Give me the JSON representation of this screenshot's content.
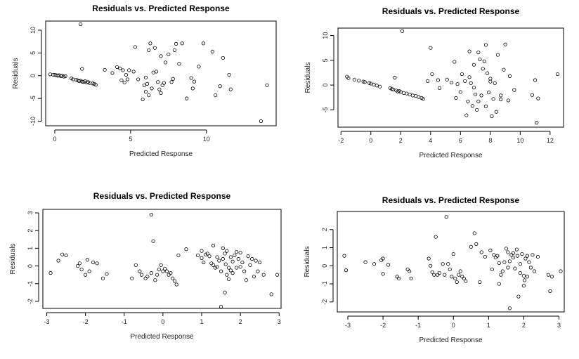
{
  "chart_data": [
    {
      "type": "scatter",
      "title": "Residuals vs. Predicted Response",
      "xlabel": "Predicted Response",
      "ylabel": "Residuals",
      "xlim": [
        -0.6,
        14.6
      ],
      "ylim": [
        -11,
        12
      ],
      "xticks": [
        "0",
        "5",
        "10"
      ],
      "xtick_values": [
        0,
        5,
        10
      ],
      "yticks": [
        "-10",
        "-5",
        "0",
        "5",
        "10"
      ],
      "ytick_values": [
        -10,
        -5,
        0,
        5,
        10
      ],
      "grid": false,
      "points": [
        [
          -0.3,
          0.3
        ],
        [
          -0.1,
          0.2
        ],
        [
          0.0,
          0.2
        ],
        [
          0.1,
          0.1
        ],
        [
          0.2,
          0.0
        ],
        [
          0.3,
          0.1
        ],
        [
          0.4,
          -0.1
        ],
        [
          0.5,
          0.0
        ],
        [
          0.6,
          -0.2
        ],
        [
          0.7,
          -0.1
        ],
        [
          1.1,
          -0.6
        ],
        [
          1.2,
          -0.8
        ],
        [
          1.4,
          -0.9
        ],
        [
          1.5,
          -1.0
        ],
        [
          1.6,
          -1.2
        ],
        [
          1.7,
          -1.1
        ],
        [
          1.8,
          -1.3
        ],
        [
          1.9,
          -1.4
        ],
        [
          2.0,
          -1.2
        ],
        [
          2.1,
          -1.5
        ],
        [
          2.2,
          -1.4
        ],
        [
          2.3,
          -1.6
        ],
        [
          2.5,
          -1.7
        ],
        [
          2.6,
          -1.8
        ],
        [
          2.7,
          -2.0
        ],
        [
          1.7,
          11.3
        ],
        [
          1.8,
          1.5
        ],
        [
          3.3,
          1.3
        ],
        [
          3.8,
          0.6
        ],
        [
          4.1,
          1.9
        ],
        [
          4.3,
          1.6
        ],
        [
          4.4,
          -1.0
        ],
        [
          4.5,
          1.2
        ],
        [
          4.6,
          -1.5
        ],
        [
          4.7,
          0.2
        ],
        [
          4.8,
          -0.8
        ],
        [
          4.9,
          1.2
        ],
        [
          5.2,
          0.9
        ],
        [
          5.3,
          6.3
        ],
        [
          5.5,
          -0.8
        ],
        [
          5.8,
          -5.2
        ],
        [
          5.9,
          -2.1
        ],
        [
          6.0,
          -3.5
        ],
        [
          6.1,
          -1.8
        ],
        [
          6.2,
          -4.3
        ],
        [
          6.3,
          7.1
        ],
        [
          6.4,
          -2.8
        ],
        [
          6.5,
          0.7
        ],
        [
          6.6,
          6.1
        ],
        [
          6.7,
          0.9
        ],
        [
          6.8,
          -1.4
        ],
        [
          6.9,
          -3.0
        ],
        [
          7.0,
          -3.8
        ],
        [
          7.1,
          -2.1
        ],
        [
          7.2,
          -1.6
        ],
        [
          7.3,
          2.9
        ],
        [
          7.5,
          4.7
        ],
        [
          7.7,
          -1.4
        ],
        [
          7.8,
          -0.7
        ],
        [
          7.9,
          5.6
        ],
        [
          8.0,
          7.0
        ],
        [
          8.2,
          2.6
        ],
        [
          8.4,
          7.1
        ],
        [
          8.7,
          -5.0
        ],
        [
          9.0,
          -0.5
        ],
        [
          9.1,
          -2.8
        ],
        [
          9.2,
          -1.3
        ],
        [
          9.5,
          2.0
        ],
        [
          9.8,
          7.1
        ],
        [
          10.4,
          5.3
        ],
        [
          10.6,
          -4.3
        ],
        [
          10.9,
          -2.3
        ],
        [
          11.1,
          3.9
        ],
        [
          11.5,
          0.2
        ],
        [
          11.6,
          -3.0
        ],
        [
          13.6,
          -10.0
        ],
        [
          14.0,
          -2.1
        ],
        [
          6.2,
          5.6
        ],
        [
          7.0,
          4.3
        ],
        [
          6.0,
          -0.4
        ]
      ]
    },
    {
      "type": "scatter",
      "title": "Residuals vs. Predicted Response",
      "xlabel": "Predicted Response",
      "ylabel": "Residuals",
      "xlim": [
        -2.2,
        12.9
      ],
      "ylim": [
        -8.5,
        11.5
      ],
      "xticks": [
        "-2",
        "0",
        "2",
        "4",
        "6",
        "8",
        "10",
        "12"
      ],
      "xtick_values": [
        -2,
        0,
        2,
        4,
        6,
        8,
        10,
        12
      ],
      "yticks": [
        "-5",
        "0",
        "5",
        "10"
      ],
      "ytick_values": [
        -5,
        0,
        5,
        10
      ],
      "grid": false,
      "points": [
        [
          -1.6,
          1.7
        ],
        [
          -1.5,
          1.4
        ],
        [
          -1.1,
          1.1
        ],
        [
          -0.8,
          0.9
        ],
        [
          -0.5,
          0.7
        ],
        [
          -0.4,
          0.6
        ],
        [
          -0.1,
          0.4
        ],
        [
          0.0,
          0.3
        ],
        [
          0.2,
          0.1
        ],
        [
          0.4,
          -0.1
        ],
        [
          0.6,
          -0.3
        ],
        [
          1.3,
          -0.6
        ],
        [
          1.4,
          -0.8
        ],
        [
          1.5,
          -0.9
        ],
        [
          1.7,
          -1.1
        ],
        [
          1.8,
          -1.3
        ],
        [
          1.9,
          -1.2
        ],
        [
          2.0,
          -1.4
        ],
        [
          2.2,
          -1.6
        ],
        [
          2.4,
          -1.7
        ],
        [
          2.6,
          -1.9
        ],
        [
          2.8,
          -2.1
        ],
        [
          3.0,
          -2.2
        ],
        [
          3.2,
          -2.4
        ],
        [
          3.4,
          -2.6
        ],
        [
          3.5,
          -2.8
        ],
        [
          2.1,
          10.9
        ],
        [
          1.6,
          1.5
        ],
        [
          3.8,
          0.8
        ],
        [
          4.0,
          7.5
        ],
        [
          4.1,
          2.2
        ],
        [
          4.6,
          -0.6
        ],
        [
          5.1,
          1.1
        ],
        [
          5.4,
          0.5
        ],
        [
          5.6,
          4.7
        ],
        [
          5.8,
          0.2
        ],
        [
          6.0,
          -1.4
        ],
        [
          6.1,
          2.2
        ],
        [
          6.3,
          0.8
        ],
        [
          6.5,
          -3.3
        ],
        [
          6.6,
          6.8
        ],
        [
          6.7,
          0.4
        ],
        [
          6.8,
          -4.2
        ],
        [
          6.9,
          4.1
        ],
        [
          7.0,
          -1.9
        ],
        [
          7.1,
          -5.0
        ],
        [
          7.2,
          -3.3
        ],
        [
          7.3,
          5.2
        ],
        [
          7.4,
          -2.1
        ],
        [
          7.5,
          3.3
        ],
        [
          7.6,
          4.8
        ],
        [
          7.7,
          -4.3
        ],
        [
          7.8,
          2.4
        ],
        [
          7.9,
          -1.5
        ],
        [
          8.0,
          1.3
        ],
        [
          8.1,
          -6.3
        ],
        [
          8.2,
          -2.8
        ],
        [
          8.3,
          0.4
        ],
        [
          8.4,
          -5.4
        ],
        [
          8.5,
          6.1
        ],
        [
          8.7,
          -2.9
        ],
        [
          8.9,
          3.1
        ],
        [
          9.0,
          8.2
        ],
        [
          9.2,
          -3.1
        ],
        [
          9.6,
          -1.0
        ],
        [
          10.8,
          -2.0
        ],
        [
          11.0,
          1.0
        ],
        [
          11.1,
          -7.6
        ],
        [
          11.2,
          -2.7
        ],
        [
          12.5,
          2.2
        ],
        [
          6.4,
          -6.1
        ],
        [
          7.2,
          6.6
        ],
        [
          8.0,
          0.7
        ],
        [
          5.7,
          -2.6
        ],
        [
          6.6,
          1.6
        ],
        [
          7.7,
          8.1
        ],
        [
          8.7,
          -2.1
        ],
        [
          9.3,
          1.8
        ],
        [
          4.5,
          1.0
        ],
        [
          6.9,
          -0.5
        ]
      ]
    },
    {
      "type": "scatter",
      "title": "Residuals vs. Predicted Response",
      "xlabel": "Predicted Response",
      "ylabel": "Residuals",
      "xlim": [
        -3.1,
        3.05
      ],
      "ylim": [
        -2.4,
        3.2
      ],
      "xticks": [
        "-3",
        "-2",
        "-1",
        "0",
        "1",
        "2",
        "3"
      ],
      "xtick_values": [
        -3,
        -2,
        -1,
        0,
        1,
        2,
        3
      ],
      "yticks": [
        "-2",
        "-1",
        "0",
        "1",
        "2",
        "3"
      ],
      "ytick_values": [
        -2,
        -1,
        0,
        1,
        2,
        3
      ],
      "grid": false,
      "points": [
        [
          -2.9,
          -0.4
        ],
        [
          -2.7,
          0.3
        ],
        [
          -2.6,
          0.65
        ],
        [
          -2.5,
          0.6
        ],
        [
          -2.2,
          0.0
        ],
        [
          -2.15,
          0.15
        ],
        [
          -2.1,
          -0.2
        ],
        [
          -2.0,
          -0.5
        ],
        [
          -1.95,
          0.35
        ],
        [
          -1.9,
          -0.3
        ],
        [
          -1.8,
          0.2
        ],
        [
          -1.7,
          0.15
        ],
        [
          -1.55,
          -0.7
        ],
        [
          -1.45,
          -0.45
        ],
        [
          -0.8,
          -0.7
        ],
        [
          -0.7,
          0.05
        ],
        [
          -0.6,
          -0.3
        ],
        [
          -0.55,
          -0.5
        ],
        [
          -0.45,
          -0.7
        ],
        [
          -0.4,
          -0.6
        ],
        [
          -0.3,
          -0.4
        ],
        [
          -0.3,
          2.9
        ],
        [
          -0.25,
          1.4
        ],
        [
          -0.2,
          -0.8
        ],
        [
          -0.15,
          -0.5
        ],
        [
          -0.1,
          -0.2
        ],
        [
          -0.05,
          0.05
        ],
        [
          0.0,
          -0.3
        ],
        [
          0.05,
          -0.15
        ],
        [
          0.1,
          -0.3
        ],
        [
          0.15,
          -0.5
        ],
        [
          0.2,
          -0.4
        ],
        [
          0.25,
          -0.7
        ],
        [
          0.3,
          -0.85
        ],
        [
          0.35,
          -1.05
        ],
        [
          0.4,
          0.6
        ],
        [
          0.6,
          0.95
        ],
        [
          0.9,
          0.6
        ],
        [
          1.0,
          0.85
        ],
        [
          1.05,
          0.2
        ],
        [
          1.1,
          0.65
        ],
        [
          1.15,
          0.7
        ],
        [
          1.2,
          0.55
        ],
        [
          1.25,
          0.15
        ],
        [
          1.3,
          1.15
        ],
        [
          1.35,
          -0.1
        ],
        [
          1.4,
          0.5
        ],
        [
          1.45,
          0.3
        ],
        [
          1.5,
          -0.3
        ],
        [
          1.55,
          1.0
        ],
        [
          1.6,
          0.7
        ],
        [
          1.62,
          0.1
        ],
        [
          1.65,
          -0.5
        ],
        [
          1.7,
          -0.1
        ],
        [
          1.75,
          0.5
        ],
        [
          1.8,
          -0.4
        ],
        [
          1.85,
          0.6
        ],
        [
          1.9,
          -0.1
        ],
        [
          1.95,
          0.4
        ],
        [
          2.0,
          0.75
        ],
        [
          2.05,
          0.2
        ],
        [
          2.1,
          -0.3
        ],
        [
          2.15,
          -0.8
        ],
        [
          2.2,
          0.55
        ],
        [
          2.3,
          0.4
        ],
        [
          2.35,
          -0.6
        ],
        [
          2.4,
          0.3
        ],
        [
          2.45,
          -0.3
        ],
        [
          2.5,
          0.2
        ],
        [
          2.6,
          -0.5
        ],
        [
          2.8,
          -1.6
        ],
        [
          2.95,
          -0.5
        ],
        [
          1.5,
          -2.3
        ],
        [
          1.6,
          -1.5
        ],
        [
          1.7,
          -0.75
        ],
        [
          1.65,
          0.85
        ],
        [
          1.8,
          0.25
        ],
        [
          1.9,
          0.8
        ],
        [
          1.0,
          0.45
        ],
        [
          1.4,
          -0.05
        ],
        [
          2.0,
          -0.05
        ],
        [
          1.55,
          0.4
        ],
        [
          1.75,
          -0.25
        ],
        [
          2.25,
          0.05
        ],
        [
          1.3,
          0.05
        ]
      ]
    },
    {
      "type": "scatter",
      "title": "Residuals vs. Predicted Response",
      "xlabel": "Predicted Response",
      "ylabel": "Residuals",
      "xlim": [
        -3.3,
        3.15
      ],
      "ylim": [
        -2.55,
        3.0
      ],
      "xticks": [
        "-3",
        "-2",
        "-1",
        "0",
        "1",
        "2",
        "3"
      ],
      "xtick_values": [
        -3,
        -2,
        -1,
        0,
        1,
        2,
        3
      ],
      "yticks": [
        "-2",
        "-1",
        "0",
        "1",
        "2"
      ],
      "ytick_values": [
        -2,
        -1,
        0,
        1,
        2
      ],
      "grid": false,
      "points": [
        [
          -3.1,
          0.55
        ],
        [
          -3.05,
          -0.25
        ],
        [
          -2.5,
          0.2
        ],
        [
          -2.25,
          0.1
        ],
        [
          -2.05,
          0.3
        ],
        [
          -2.0,
          0.4
        ],
        [
          -2.0,
          -0.45
        ],
        [
          -1.85,
          0.05
        ],
        [
          -1.6,
          -0.6
        ],
        [
          -1.55,
          -0.7
        ],
        [
          -1.3,
          -0.2
        ],
        [
          -1.25,
          -0.3
        ],
        [
          -1.2,
          -0.7
        ],
        [
          -0.7,
          0.4
        ],
        [
          -0.65,
          0.0
        ],
        [
          -0.6,
          -0.35
        ],
        [
          -0.55,
          -0.5
        ],
        [
          -0.5,
          1.6
        ],
        [
          -0.45,
          -0.5
        ],
        [
          -0.4,
          -0.4
        ],
        [
          -0.3,
          0.1
        ],
        [
          -0.25,
          -0.5
        ],
        [
          -0.2,
          2.7
        ],
        [
          -0.15,
          0.1
        ],
        [
          -0.1,
          -0.2
        ],
        [
          -0.05,
          -0.6
        ],
        [
          0.0,
          0.65
        ],
        [
          0.05,
          -0.7
        ],
        [
          0.1,
          -0.9
        ],
        [
          0.15,
          -0.5
        ],
        [
          0.2,
          -0.3
        ],
        [
          0.25,
          -0.6
        ],
        [
          0.3,
          -0.7
        ],
        [
          0.35,
          -0.85
        ],
        [
          0.5,
          1.05
        ],
        [
          0.6,
          1.8
        ],
        [
          0.65,
          1.2
        ],
        [
          0.8,
          0.75
        ],
        [
          0.9,
          0.5
        ],
        [
          1.05,
          0.85
        ],
        [
          1.1,
          -0.2
        ],
        [
          1.15,
          0.6
        ],
        [
          1.2,
          0.45
        ],
        [
          1.25,
          0.55
        ],
        [
          1.3,
          0.15
        ],
        [
          1.35,
          -0.5
        ],
        [
          1.4,
          -0.3
        ],
        [
          1.5,
          0.95
        ],
        [
          1.55,
          0.75
        ],
        [
          1.6,
          -2.35
        ],
        [
          1.6,
          0.25
        ],
        [
          1.65,
          0.6
        ],
        [
          1.7,
          0.45
        ],
        [
          1.75,
          -0.15
        ],
        [
          1.8,
          0.9
        ],
        [
          1.82,
          0.55
        ],
        [
          1.85,
          -1.7
        ],
        [
          1.9,
          -0.4
        ],
        [
          1.95,
          0.65
        ],
        [
          2.0,
          -0.55
        ],
        [
          2.02,
          -0.8
        ],
        [
          2.05,
          0.4
        ],
        [
          2.1,
          -0.6
        ],
        [
          2.15,
          0.2
        ],
        [
          2.2,
          -0.1
        ],
        [
          2.3,
          -0.3
        ],
        [
          2.4,
          0.5
        ],
        [
          2.7,
          -0.5
        ],
        [
          2.75,
          -1.4
        ],
        [
          2.8,
          -0.6
        ],
        [
          3.05,
          -0.3
        ],
        [
          1.45,
          0.2
        ],
        [
          1.7,
          0.7
        ],
        [
          1.9,
          0.1
        ],
        [
          2.1,
          0.55
        ],
        [
          1.3,
          -1.0
        ],
        [
          0.75,
          -0.9
        ],
        [
          2.0,
          -1.1
        ],
        [
          1.55,
          -0.1
        ],
        [
          2.25,
          0.6
        ]
      ]
    }
  ]
}
